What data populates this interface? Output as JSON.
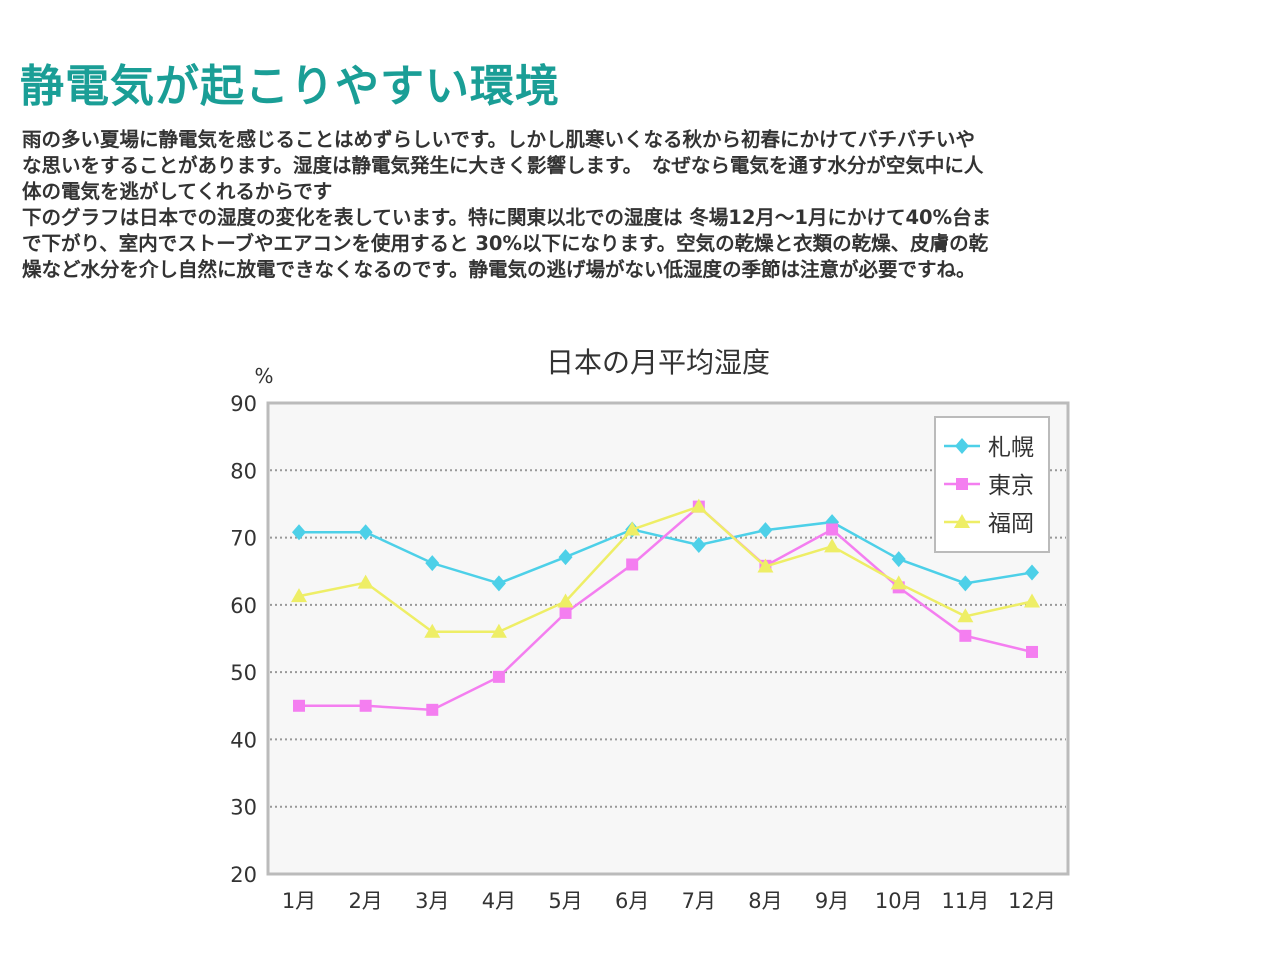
{
  "heading": "静電気が起こりやすい環境",
  "body_lines": [
    "雨の多い夏場に静電気を感じることはめずらしいです。しかし肌寒いくなる秋から初春にかけてバチバチいや",
    "な思いをすることがあります。湿度は静電気発生に大きく影響します。　なぜなら電気を通す水分が空気中に人",
    "体の電気を逃がしてくれるからです",
    "下のグラフは日本での湿度の変化を表しています。特に関東以北での湿度は 冬場12月～1月にかけて40%台ま",
    "で下がり、室内でストーブやエアコンを使用すると 30%以下になります。空気の乾燥と衣類の乾燥、皮膚の乾",
    "燥など水分を介し自然に放電できなくなるのです。静電気の逃げ場がない低湿度の季節は注意が必要ですね。"
  ],
  "chart_data": {
    "type": "line",
    "title": "日本の月平均湿度",
    "ylabel": "%",
    "xlabel": "",
    "ylim": [
      20,
      90
    ],
    "yticks": [
      20,
      30,
      40,
      50,
      60,
      70,
      80,
      90
    ],
    "grid": true,
    "legend_position": "top-right",
    "categories": [
      "1月",
      "2月",
      "3月",
      "4月",
      "5月",
      "6月",
      "7月",
      "8月",
      "9月",
      "10月",
      "11月",
      "12月"
    ],
    "series": [
      {
        "name": "札幌",
        "color": "#4dd0e8",
        "marker": "diamond",
        "values": [
          70.8,
          70.8,
          66.2,
          63.2,
          67.1,
          71.2,
          68.9,
          71.1,
          72.3,
          66.8,
          63.2,
          64.8
        ]
      },
      {
        "name": "東京",
        "color": "#f47ef0",
        "marker": "square",
        "values": [
          45.0,
          45.0,
          44.4,
          49.3,
          58.8,
          66.0,
          74.6,
          65.8,
          71.2,
          62.6,
          55.4,
          53.0
        ]
      },
      {
        "name": "福岡",
        "color": "#eeee66",
        "marker": "triangle",
        "values": [
          61.3,
          63.3,
          56.0,
          56.0,
          60.5,
          71.2,
          74.6,
          65.7,
          68.7,
          63.2,
          58.3,
          60.5
        ]
      }
    ]
  }
}
